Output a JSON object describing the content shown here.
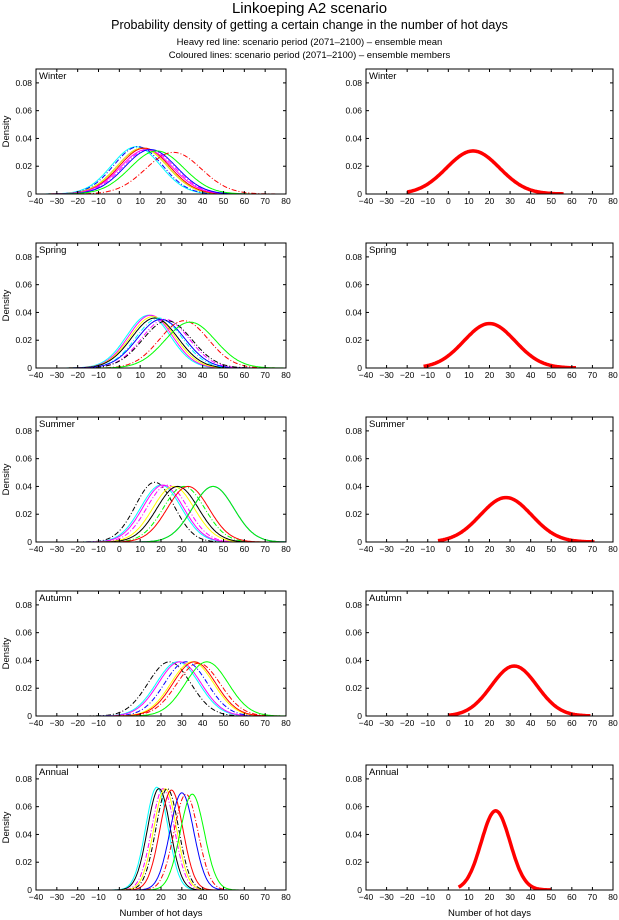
{
  "header": {
    "title": "Linkoeping A2 scenario",
    "subtitle": "Probability density of getting a certain change in the number of hot days",
    "note1": "Heavy red line: scenario period (2071–2100) – ensemble mean",
    "note2": "Coloured lines: scenario period (2071–2100) – ensemble members"
  },
  "chart_data": {
    "type": "line",
    "xlabel": "Number of hot days",
    "ylabel": "Density",
    "xlim": [
      -40,
      80
    ],
    "ylim": [
      0,
      0.09
    ],
    "xticks": [
      -40,
      -30,
      -20,
      -10,
      0,
      10,
      20,
      30,
      40,
      50,
      60,
      70,
      80
    ],
    "yticks": [
      0,
      0.02,
      0.04,
      0.06,
      0.08
    ],
    "ytick_labels": [
      "0",
      "0.02",
      "0.04",
      "0.06",
      "0.08"
    ],
    "xtick_labels": [
      "−40",
      "−30",
      "−20",
      "−10",
      "0",
      "10",
      "20",
      "30",
      "40",
      "50",
      "60",
      "70",
      "80"
    ],
    "grid": false,
    "panels": [
      {
        "season": "Winter",
        "members": [
          {
            "color": "#00ffff",
            "style": "solid",
            "mean": 8,
            "peak": 0.034
          },
          {
            "color": "#0000ff",
            "style": "dashdot",
            "mean": 9,
            "peak": 0.034
          },
          {
            "color": "#000000",
            "style": "solid",
            "mean": 11,
            "peak": 0.033
          },
          {
            "color": "#ffff00",
            "style": "solid",
            "mean": 11,
            "peak": 0.033
          },
          {
            "color": "#ff0000",
            "style": "solid",
            "mean": 12,
            "peak": 0.033
          },
          {
            "color": "#ff00ff",
            "style": "solid",
            "mean": 13,
            "peak": 0.032
          },
          {
            "color": "#ff00ff",
            "style": "dashdot",
            "mean": 14,
            "peak": 0.032
          },
          {
            "color": "#0000ff",
            "style": "solid",
            "mean": 15,
            "peak": 0.032
          },
          {
            "color": "#00ff00",
            "style": "solid",
            "mean": 18,
            "peak": 0.031
          },
          {
            "color": "#ff0000",
            "style": "dashdot",
            "mean": 26,
            "peak": 0.03
          }
        ],
        "ensemble_mean": {
          "color": "#ff0000",
          "mean": 12,
          "peak": 0.031,
          "support": [
            -20,
            56
          ]
        }
      },
      {
        "season": "Spring",
        "members": [
          {
            "color": "#00ffff",
            "style": "solid",
            "mean": 14,
            "peak": 0.038
          },
          {
            "color": "#ff00ff",
            "style": "solid",
            "mean": 15,
            "peak": 0.038
          },
          {
            "color": "#ffff00",
            "style": "solid",
            "mean": 16,
            "peak": 0.037
          },
          {
            "color": "#000000",
            "style": "solid",
            "mean": 17,
            "peak": 0.036
          },
          {
            "color": "#00ffff",
            "style": "dashdot",
            "mean": 19,
            "peak": 0.036
          },
          {
            "color": "#0000ff",
            "style": "solid",
            "mean": 20,
            "peak": 0.035
          },
          {
            "color": "#ff00ff",
            "style": "dashdot",
            "mean": 22,
            "peak": 0.035
          },
          {
            "color": "#000000",
            "style": "dashdot",
            "mean": 23,
            "peak": 0.034
          },
          {
            "color": "#ff0000",
            "style": "dashdot",
            "mean": 31,
            "peak": 0.034
          },
          {
            "color": "#00ff00",
            "style": "solid",
            "mean": 34,
            "peak": 0.033
          }
        ],
        "ensemble_mean": {
          "color": "#ff0000",
          "mean": 20,
          "peak": 0.032,
          "support": [
            -12,
            62
          ]
        }
      },
      {
        "season": "Summer",
        "members": [
          {
            "color": "#000000",
            "style": "dashdot",
            "mean": 17,
            "peak": 0.043
          },
          {
            "color": "#00ffff",
            "style": "solid",
            "mean": 20,
            "peak": 0.041
          },
          {
            "color": "#ff00ff",
            "style": "solid",
            "mean": 21,
            "peak": 0.041
          },
          {
            "color": "#ff00ff",
            "style": "dashdot",
            "mean": 23,
            "peak": 0.041
          },
          {
            "color": "#ffff00",
            "style": "solid",
            "mean": 26,
            "peak": 0.04
          },
          {
            "color": "#000000",
            "style": "solid",
            "mean": 28,
            "peak": 0.04
          },
          {
            "color": "#00ff00",
            "style": "dashdot",
            "mean": 31,
            "peak": 0.04
          },
          {
            "color": "#ff0000",
            "style": "solid",
            "mean": 33,
            "peak": 0.04
          },
          {
            "color": "#0000ff",
            "style": "solid",
            "mean": 45,
            "peak": 0.04
          },
          {
            "color": "#00ff00",
            "style": "solid",
            "mean": 45,
            "peak": 0.04
          }
        ],
        "ensemble_mean": {
          "color": "#ff0000",
          "mean": 28,
          "peak": 0.032,
          "support": [
            -5,
            71
          ]
        }
      },
      {
        "season": "Autumn",
        "members": [
          {
            "color": "#000000",
            "style": "dashdot",
            "mean": 24,
            "peak": 0.039
          },
          {
            "color": "#00ffff",
            "style": "solid",
            "mean": 28,
            "peak": 0.039
          },
          {
            "color": "#ff00ff",
            "style": "solid",
            "mean": 29,
            "peak": 0.039
          },
          {
            "color": "#0000ff",
            "style": "dashdot",
            "mean": 32,
            "peak": 0.039
          },
          {
            "color": "#ffff00",
            "style": "solid",
            "mean": 35,
            "peak": 0.039
          },
          {
            "color": "#ff0000",
            "style": "solid",
            "mean": 36,
            "peak": 0.039
          },
          {
            "color": "#ff0000",
            "style": "dashdot",
            "mean": 38,
            "peak": 0.038
          },
          {
            "color": "#00ff00",
            "style": "solid",
            "mean": 42,
            "peak": 0.039
          }
        ],
        "ensemble_mean": {
          "color": "#ff0000",
          "mean": 32,
          "peak": 0.036,
          "support": [
            0,
            69
          ]
        }
      },
      {
        "season": "Annual",
        "members": [
          {
            "color": "#00ffff",
            "style": "solid",
            "mean": 18,
            "peak": 0.074
          },
          {
            "color": "#000000",
            "style": "solid",
            "mean": 19,
            "peak": 0.073
          },
          {
            "color": "#ff00ff",
            "style": "dashdot",
            "mean": 21,
            "peak": 0.073
          },
          {
            "color": "#ffff00",
            "style": "solid",
            "mean": 22,
            "peak": 0.073
          },
          {
            "color": "#000000",
            "style": "dashdot",
            "mean": 23,
            "peak": 0.073
          },
          {
            "color": "#ff0000",
            "style": "solid",
            "mean": 25,
            "peak": 0.072
          },
          {
            "color": "#0000ff",
            "style": "solid",
            "mean": 30,
            "peak": 0.07
          },
          {
            "color": "#ff0000",
            "style": "dashdot",
            "mean": 32,
            "peak": 0.069
          },
          {
            "color": "#00ff00",
            "style": "solid",
            "mean": 35,
            "peak": 0.069
          }
        ],
        "ensemble_mean": {
          "color": "#ff0000",
          "mean": 23,
          "peak": 0.057,
          "support": [
            5,
            50
          ]
        }
      }
    ]
  }
}
